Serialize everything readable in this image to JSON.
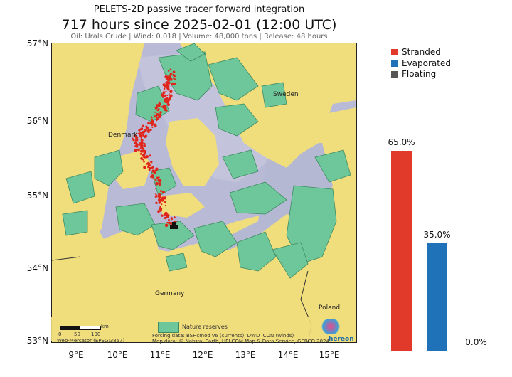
{
  "header": {
    "supertitle": "PELETS-2D passive tracer forward integration",
    "title": "717 hours since 2025-02-01 (12:00 UTC)",
    "subtitle": "Oil: Urals Crude | Wind: 0.018 | Volume: 48,000 tons | Release: 48 hours"
  },
  "map": {
    "lat_labels": [
      "57°N",
      "56°N",
      "55°N",
      "54°N",
      "53°N"
    ],
    "lon_labels": [
      "9°E",
      "10°E",
      "11°E",
      "12°E",
      "13°E",
      "14°E",
      "15°E"
    ],
    "place_labels": {
      "sweden": "Sweden",
      "denmark": "Denmark",
      "germany": "Germany",
      "poland": "Poland"
    },
    "scale_bar": {
      "unit": "km",
      "ticks": [
        "0",
        "50",
        "100"
      ]
    },
    "projection": "Web-Mercator (EPSG:3857)",
    "legend_label": "Nature reserves",
    "credits": [
      "Forcing data: BSHcmod v6 (currents), DWD ICON (winds)",
      "Map data: © Natural Earth, HELCOM Map & Data Service, GEBCO 2024"
    ],
    "logo_text": "hereon",
    "colors": {
      "land": "#f0dd7c",
      "sea": "#b9bbd6",
      "reserve": "#6ec79a",
      "tracer": "#e0261c"
    }
  },
  "legend": {
    "items": [
      {
        "label": "Stranded",
        "color": "#e23a2a"
      },
      {
        "label": "Evaporated",
        "color": "#1f72b8"
      },
      {
        "label": "Floating",
        "color": "#555555"
      }
    ]
  },
  "chart_data": {
    "type": "bar",
    "categories": [
      "Stranded",
      "Evaporated",
      "Floating"
    ],
    "values": [
      65.0,
      35.0,
      0.0
    ],
    "value_labels": [
      "65.0%",
      "35.0%",
      "0.0%"
    ],
    "colors": [
      "#e23a2a",
      "#1f72b8",
      "#555555"
    ],
    "ylim": [
      0,
      100
    ]
  }
}
